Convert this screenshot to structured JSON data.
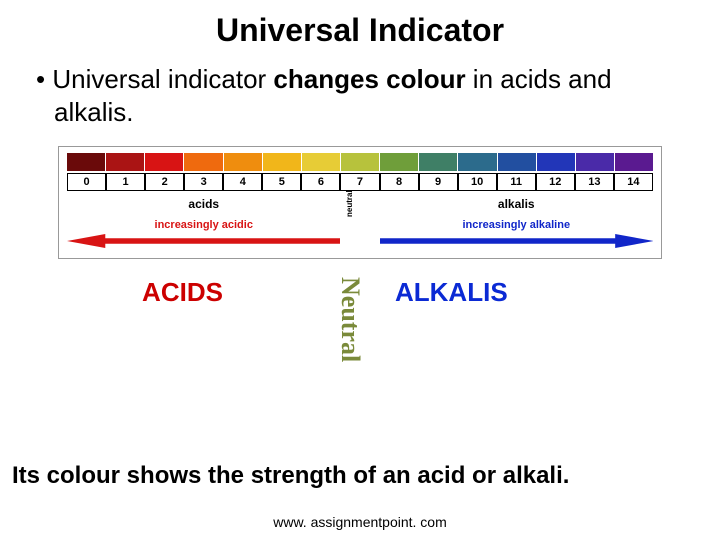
{
  "title": "Universal Indicator",
  "bullet_prefix": "Universal indicator ",
  "bullet_bold": "changes colour",
  "bullet_suffix": " in acids and alkalis.",
  "ph_scale": {
    "numbers": [
      "0",
      "1",
      "2",
      "3",
      "4",
      "5",
      "6",
      "7",
      "8",
      "9",
      "10",
      "11",
      "12",
      "13",
      "14"
    ],
    "colors": [
      "#6a0a0a",
      "#aa1414",
      "#d81414",
      "#ef6a0e",
      "#ef8d0e",
      "#f1b61a",
      "#e7cc36",
      "#b7c23c",
      "#6f9e3a",
      "#3f7f66",
      "#2c6b8c",
      "#224fa0",
      "#2236b8",
      "#4a2aa8",
      "#5a1a90"
    ],
    "label_acids": "acids",
    "label_neutral": "neutral",
    "label_alkalis": "alkalis",
    "arrow_acids_text": "increasingly acidic",
    "arrow_alkalis_text": "increasingly alkaline",
    "arrow_acid_color": "#d81414",
    "arrow_alkali_color": "#1126c9"
  },
  "big_labels": {
    "acids": "ACIDS",
    "neutral": "Neutral",
    "alkalis": "ALKALIS",
    "acids_color": "#cc0000",
    "neutral_color": "#7a8a3a",
    "alkalis_color": "#0b2ad4"
  },
  "bottom_text": "Its colour shows the strength of an acid or alkali.",
  "footer": "www. assignmentpoint. com"
}
